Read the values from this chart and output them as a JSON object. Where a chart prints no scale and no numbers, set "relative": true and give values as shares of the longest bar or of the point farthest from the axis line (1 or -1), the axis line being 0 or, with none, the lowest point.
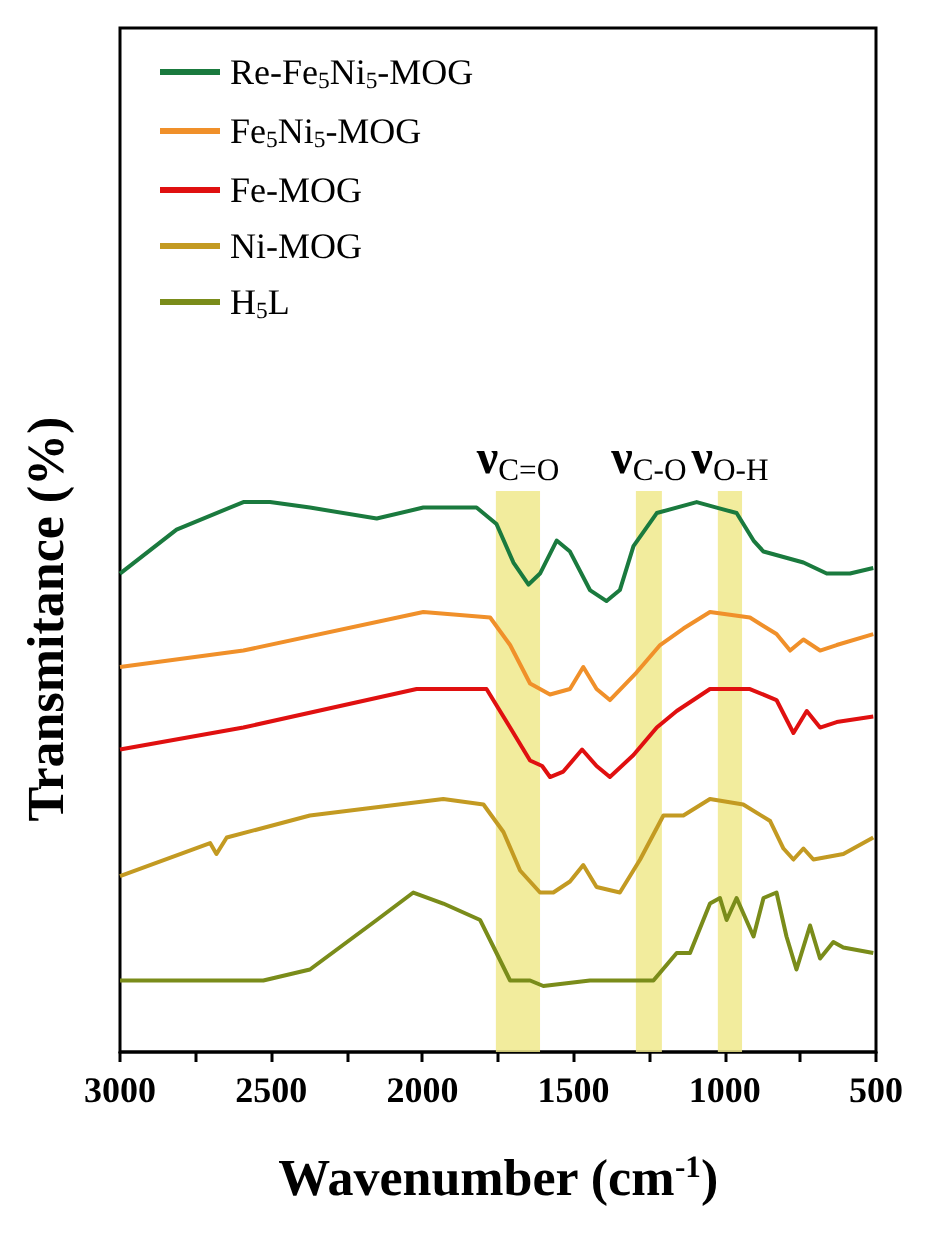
{
  "chart_data": {
    "type": "line",
    "relative": true,
    "xlabel": "Wavenumber (cm$^{-1}$)",
    "ylabel": "Transmitance (%)",
    "xlim": [
      3000,
      500
    ],
    "xticks": [
      3000,
      {
        "value": 2750,
        "label": null
      },
      2500,
      {
        "value": 2250,
        "label": null
      },
      2000,
      {
        "value": 1750,
        "label": null
      },
      1500,
      {
        "value": 1250,
        "label": null
      },
      1000,
      {
        "value": 750,
        "label": null
      },
      500
    ],
    "grid": false,
    "legend": "top left",
    "marker": "none",
    "line_style": "solid",
    "bands": [
      {
        "axis": "x",
        "from": 1611,
        "to": 1757,
        "label": "ν$_{C=O}$",
        "color": "#f0e98c"
      },
      {
        "axis": "x",
        "from": 1208,
        "to": 1294,
        "label": "ν$_{C-O}$",
        "color": "#f0e98c"
      },
      {
        "axis": "x",
        "from": 943,
        "to": 1023,
        "label": "ν$_{O-H}$",
        "color": "#f0e98c"
      }
    ],
    "series": [
      {
        "name": "Re-Fe$_{5}$Ni$_{5}$-MOG",
        "color": "#1a7a3e",
        "x": [
          3000,
          2813,
          2592,
          2504,
          2372,
          2151,
          1997,
          1821,
          1755,
          1699,
          1649,
          1611,
          1556,
          1512,
          1446,
          1391,
          1347,
          1302,
          1225,
          1093,
          1027,
          961,
          905,
          872,
          740,
          663,
          586,
          509
        ],
        "values": [
          0.87,
          0.95,
          1.0,
          1.0,
          0.99,
          0.97,
          0.99,
          0.99,
          0.96,
          0.89,
          0.85,
          0.87,
          0.93,
          0.91,
          0.84,
          0.82,
          0.84,
          0.92,
          0.98,
          1.0,
          0.99,
          0.98,
          0.93,
          0.91,
          0.89,
          0.87,
          0.87,
          0.88
        ]
      },
      {
        "name": "Fe$_{5}$Ni$_{5}$-MOG",
        "color": "#f0902a",
        "x": [
          3000,
          2592,
          1997,
          1776,
          1710,
          1644,
          1578,
          1512,
          1468,
          1424,
          1380,
          1292,
          1214,
          1137,
          1049,
          917,
          829,
          784,
          740,
          685,
          630,
          509
        ],
        "values": [
          0.7,
          0.73,
          0.8,
          0.79,
          0.74,
          0.67,
          0.65,
          0.66,
          0.7,
          0.66,
          0.64,
          0.69,
          0.74,
          0.77,
          0.8,
          0.79,
          0.76,
          0.73,
          0.75,
          0.73,
          0.74,
          0.76
        ]
      },
      {
        "name": "Fe-MOG",
        "color": "#e01010",
        "x": [
          3000,
          2592,
          2019,
          1788,
          1710,
          1644,
          1604,
          1578,
          1534,
          1472,
          1424,
          1380,
          1302,
          1225,
          1159,
          1049,
          917,
          829,
          773,
          729,
          685,
          630,
          509
        ],
        "values": [
          0.55,
          0.59,
          0.66,
          0.66,
          0.59,
          0.53,
          0.52,
          0.5,
          0.51,
          0.55,
          0.52,
          0.5,
          0.54,
          0.59,
          0.62,
          0.66,
          0.66,
          0.64,
          0.58,
          0.62,
          0.59,
          0.6,
          0.61
        ]
      },
      {
        "name": "Ni-MOG",
        "color": "#c39a22",
        "x": [
          3000,
          2702,
          2681,
          2647,
          2372,
          1931,
          1798,
          1732,
          1677,
          1611,
          1567,
          1512,
          1468,
          1424,
          1347,
          1280,
          1203,
          1137,
          1049,
          939,
          850,
          806,
          773,
          740,
          707,
          608,
          509
        ],
        "values": [
          0.32,
          0.38,
          0.36,
          0.39,
          0.43,
          0.46,
          0.45,
          0.4,
          0.33,
          0.29,
          0.29,
          0.31,
          0.34,
          0.3,
          0.29,
          0.35,
          0.43,
          0.43,
          0.46,
          0.45,
          0.42,
          0.37,
          0.35,
          0.37,
          0.35,
          0.36,
          0.39
        ]
      },
      {
        "name": "H$_{5}$L",
        "color": "#7a8c1a",
        "x": [
          3000,
          2526,
          2372,
          2151,
          2030,
          1931,
          1809,
          1755,
          1710,
          1644,
          1600,
          1446,
          1358,
          1236,
          1159,
          1115,
          1049,
          1016,
          994,
          961,
          905,
          872,
          829,
          796,
          763,
          718,
          685,
          641,
          608,
          509
        ],
        "values": [
          0.13,
          0.13,
          0.15,
          0.24,
          0.29,
          0.27,
          0.24,
          0.18,
          0.13,
          0.13,
          0.12,
          0.13,
          0.13,
          0.13,
          0.18,
          0.18,
          0.27,
          0.28,
          0.24,
          0.28,
          0.21,
          0.28,
          0.29,
          0.21,
          0.15,
          0.23,
          0.17,
          0.2,
          0.19,
          0.18
        ]
      }
    ]
  }
}
